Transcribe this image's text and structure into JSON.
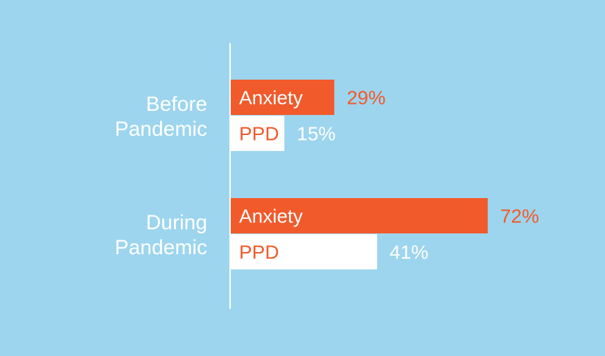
{
  "colors": {
    "background": "#9dd5ee",
    "anxiety_bar": "#f15a2b",
    "ppd_bar": "#ffffff",
    "anxiety_bar_text": "#ffffff",
    "ppd_bar_text": "#f15a2b",
    "anxiety_value_text": "#f15a2b",
    "ppd_value_text": "#ffffff",
    "axis_line": "#ffffff",
    "group_label_text": "#ffffff"
  },
  "chart_data": {
    "type": "bar",
    "orientation": "horizontal",
    "categories": [
      [
        "Before",
        "Pandemic"
      ],
      [
        "During",
        "Pandemic"
      ]
    ],
    "series": [
      {
        "name": "Anxiety",
        "values": [
          29,
          72
        ],
        "value_labels": [
          "29%",
          "72%"
        ]
      },
      {
        "name": "PPD",
        "values": [
          15,
          41
        ],
        "value_labels": [
          "15%",
          "41%"
        ]
      }
    ],
    "xlim": [
      0,
      100
    ],
    "grid": false,
    "legend": "none"
  }
}
